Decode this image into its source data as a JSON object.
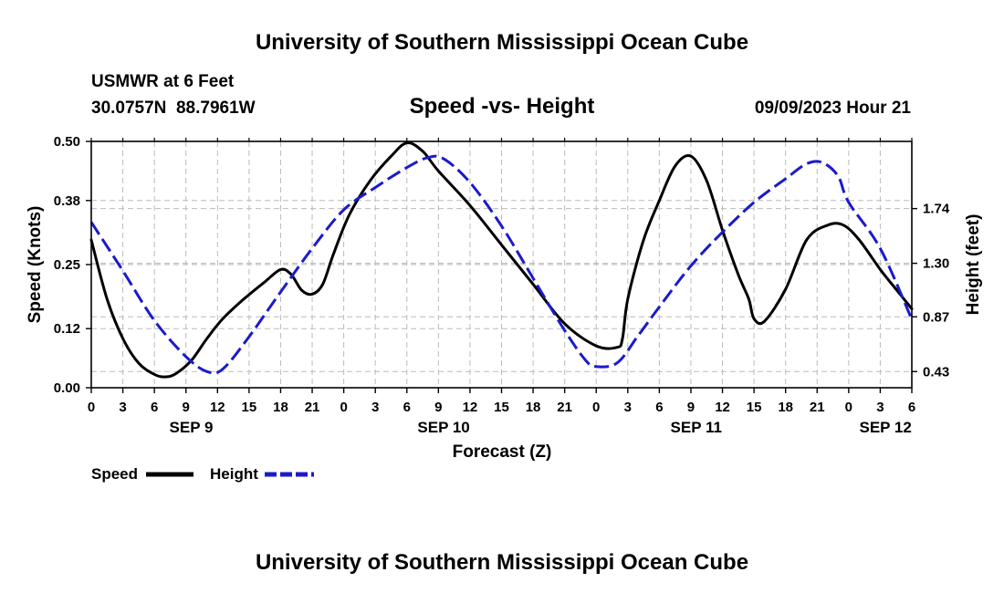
{
  "header": {
    "title": "University of Southern Mississippi Ocean Cube",
    "station": "USMWR at 6 Feet",
    "coords": "30.0757N  88.7961W",
    "subtitle": "Speed -vs- Height",
    "datetime": "09/09/2023 Hour 21"
  },
  "footer": {
    "title": "University of Southern Mississippi Ocean Cube"
  },
  "legend": {
    "speed_label": "Speed",
    "height_label": "Height"
  },
  "colors": {
    "speed": "#000000",
    "height": "#1a1acc",
    "grid": "#bbbbbb"
  },
  "chart_data": {
    "type": "line",
    "title": "Speed -vs- Height",
    "xlabel": "Forecast (Z)",
    "ylabel": "Speed (Knots)",
    "y2label": "Height (feet)",
    "x_unit": "hours since SEP 9 00Z",
    "xlim": [
      0,
      78
    ],
    "ylim": [
      0,
      0.5
    ],
    "y2lim": [
      0.3,
      2.28
    ],
    "grid": true,
    "legend_position": "bottom-left",
    "xticks": [
      0,
      3,
      6,
      9,
      12,
      15,
      18,
      21,
      24,
      27,
      30,
      33,
      36,
      39,
      42,
      45,
      48,
      51,
      54,
      57,
      60,
      63,
      66,
      69,
      72,
      75,
      78
    ],
    "xtick_labels": [
      "0",
      "3",
      "6",
      "9",
      "12",
      "15",
      "18",
      "21",
      "0",
      "3",
      "6",
      "9",
      "12",
      "15",
      "18",
      "21",
      "0",
      "3",
      "6",
      "9",
      "12",
      "15",
      "18",
      "21",
      "0",
      "3",
      "6"
    ],
    "date_labels": [
      {
        "label": "SEP 9",
        "x": 9.5
      },
      {
        "label": "SEP 10",
        "x": 33.5
      },
      {
        "label": "SEP 11",
        "x": 57.5
      },
      {
        "label": "SEP 12",
        "x": 75.5
      }
    ],
    "yticks": [
      0.0,
      0.12,
      0.25,
      0.38,
      0.5
    ],
    "ytick_labels": [
      "0.00",
      "0.12",
      "0.25",
      "0.38",
      "0.50"
    ],
    "y2ticks": [
      0.43,
      0.87,
      1.3,
      1.74
    ],
    "y2tick_labels": [
      "0.43",
      "0.87",
      "1.30",
      "1.74"
    ],
    "series": [
      {
        "name": "Speed",
        "axis": "left",
        "style": "solid",
        "x": [
          0,
          1.5,
          3,
          4.5,
          6,
          7,
          8,
          9.5,
          11,
          12.5,
          14.5,
          16.5,
          18,
          19,
          20,
          21,
          22,
          23,
          24.5,
          26.5,
          28.5,
          30,
          31.5,
          33,
          36,
          39,
          42,
          45,
          48,
          50,
          50.5,
          51,
          52.5,
          54,
          55.5,
          57,
          58.5,
          60,
          61.5,
          62.5,
          63,
          64,
          66,
          68,
          70,
          71.5,
          73,
          75,
          76.5,
          78
        ],
        "values": [
          0.3,
          0.18,
          0.1,
          0.05,
          0.027,
          0.022,
          0.028,
          0.055,
          0.1,
          0.14,
          0.18,
          0.215,
          0.24,
          0.23,
          0.198,
          0.19,
          0.21,
          0.27,
          0.35,
          0.42,
          0.47,
          0.497,
          0.48,
          0.44,
          0.37,
          0.29,
          0.21,
          0.13,
          0.085,
          0.082,
          0.1,
          0.18,
          0.3,
          0.38,
          0.45,
          0.47,
          0.42,
          0.32,
          0.23,
          0.18,
          0.14,
          0.135,
          0.2,
          0.3,
          0.33,
          0.33,
          0.3,
          0.24,
          0.2,
          0.16
        ]
      },
      {
        "name": "Height",
        "axis": "right",
        "style": "dashed",
        "x": [
          0,
          3,
          6,
          9,
          11,
          12.5,
          15,
          18,
          21,
          24,
          27,
          30,
          32,
          33.5,
          36,
          39,
          42,
          45,
          47,
          48,
          50,
          52,
          54,
          57,
          60,
          63,
          66,
          68,
          69.5,
          71,
          72,
          75,
          78
        ],
        "values": [
          1.63,
          1.24,
          0.84,
          0.55,
          0.43,
          0.45,
          0.71,
          1.07,
          1.42,
          1.73,
          1.91,
          2.07,
          2.15,
          2.14,
          1.95,
          1.6,
          1.18,
          0.76,
          0.52,
          0.47,
          0.5,
          0.72,
          0.95,
          1.28,
          1.55,
          1.79,
          1.98,
          2.1,
          2.11,
          2.0,
          1.79,
          1.42,
          0.85
        ]
      }
    ]
  }
}
